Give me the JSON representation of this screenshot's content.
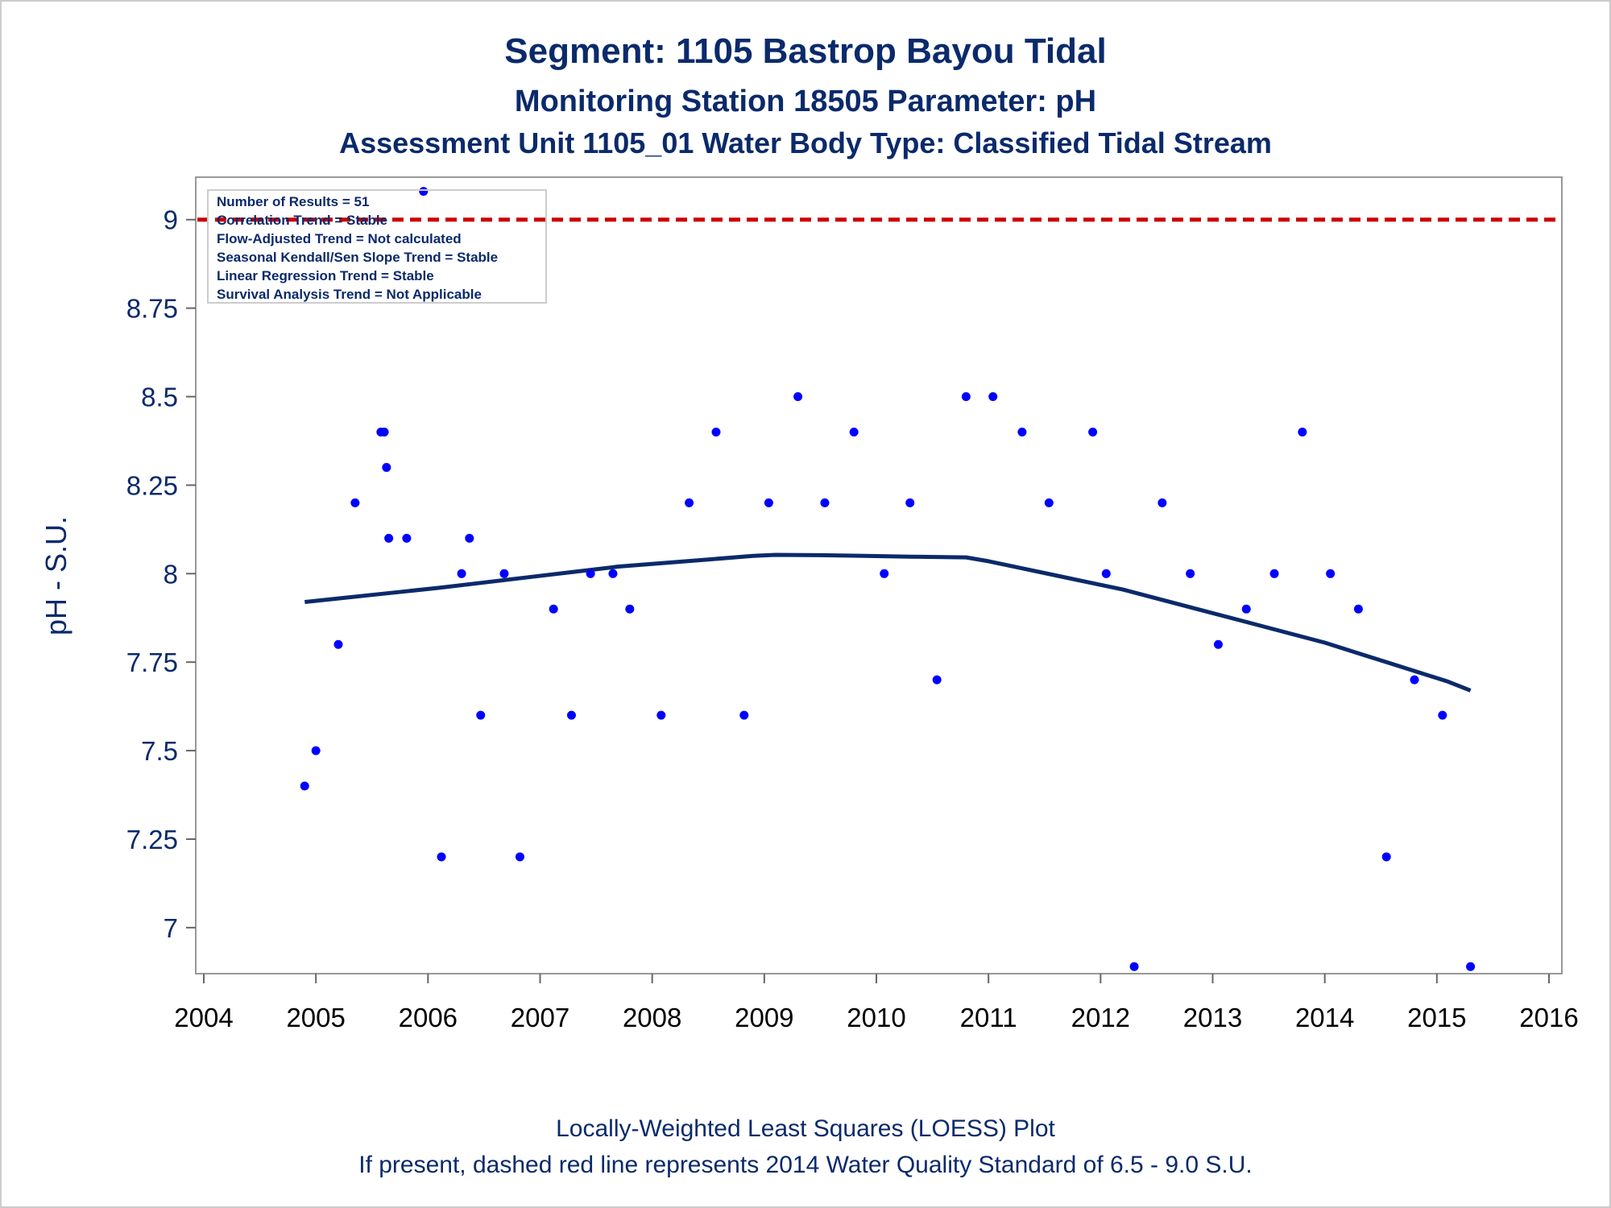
{
  "titles": {
    "line1": "Segment: 1105  Bastrop Bayou Tidal",
    "line2": "Monitoring Station 18505 Parameter: pH",
    "line3": "Assessment Unit 1105_01   Water Body Type: Classified Tidal Stream"
  },
  "footnotes": {
    "line1": "Locally-Weighted Least Squares (LOESS) Plot",
    "line2": "If present, dashed red line represents 2014 Water Quality Standard of 6.5 - 9.0 S.U."
  },
  "legend": {
    "lines": [
      "Number of Results = 51",
      "Correlation Trend = Stable",
      "Flow-Adjusted Trend = Not calculated",
      "Seasonal Kendall/Sen Slope Trend = Stable",
      "Linear Regression Trend = Stable",
      "Survival Analysis Trend = Not Applicable"
    ]
  },
  "colors": {
    "points": "#0000ff",
    "loess": "#0b2a6b",
    "standard_line": "#cc0000",
    "text": "#0b2a6b",
    "frame": "#999999"
  },
  "chart_data": {
    "type": "scatter",
    "title": "Segment: 1105  Bastrop Bayou Tidal",
    "xlabel": "",
    "ylabel": "pH - S.U.",
    "xlim": [
      2004,
      2016
    ],
    "ylim": [
      6.87,
      9.12
    ],
    "x_ticks": [
      2004,
      2005,
      2006,
      2007,
      2008,
      2009,
      2010,
      2011,
      2012,
      2013,
      2014,
      2015,
      2016
    ],
    "x_tick_labels": [
      "2004",
      "2005",
      "2006",
      "2007",
      "2008",
      "2009",
      "2010",
      "2011",
      "2012",
      "2013",
      "2014",
      "2015",
      "2016"
    ],
    "y_ticks": [
      7,
      7.25,
      7.5,
      7.75,
      8,
      8.25,
      8.5,
      8.75,
      9
    ],
    "y_tick_labels": [
      "7",
      "7.25",
      "7.5",
      "7.75",
      "8",
      "8.25",
      "8.5",
      "8.75",
      "9"
    ],
    "grid": false,
    "legend_position": "top-left",
    "reference_lines": [
      {
        "y": 9.0,
        "style": "dashed"
      }
    ],
    "points": [
      [
        2004.9,
        7.4
      ],
      [
        2005.0,
        7.5
      ],
      [
        2005.2,
        7.8
      ],
      [
        2005.35,
        8.2
      ],
      [
        2005.58,
        8.4
      ],
      [
        2005.61,
        8.4
      ],
      [
        2005.63,
        8.3
      ],
      [
        2005.65,
        8.1
      ],
      [
        2005.81,
        8.1
      ],
      [
        2005.96,
        9.08
      ],
      [
        2006.12,
        7.2
      ],
      [
        2006.3,
        8.0
      ],
      [
        2006.37,
        8.1
      ],
      [
        2006.47,
        7.6
      ],
      [
        2006.68,
        8.0
      ],
      [
        2006.82,
        7.2
      ],
      [
        2007.12,
        7.9
      ],
      [
        2007.28,
        7.6
      ],
      [
        2007.45,
        8.0
      ],
      [
        2007.65,
        8.0
      ],
      [
        2007.8,
        7.9
      ],
      [
        2008.08,
        7.6
      ],
      [
        2008.33,
        8.2
      ],
      [
        2008.57,
        8.4
      ],
      [
        2008.82,
        7.6
      ],
      [
        2009.04,
        8.2
      ],
      [
        2009.3,
        8.5
      ],
      [
        2009.54,
        8.2
      ],
      [
        2009.8,
        8.4
      ],
      [
        2010.07,
        8.0
      ],
      [
        2010.3,
        8.2
      ],
      [
        2010.54,
        7.7
      ],
      [
        2010.8,
        8.5
      ],
      [
        2011.04,
        8.5
      ],
      [
        2011.3,
        8.4
      ],
      [
        2011.54,
        8.2
      ],
      [
        2011.93,
        8.4
      ],
      [
        2012.05,
        8.0
      ],
      [
        2012.3,
        6.89
      ],
      [
        2012.55,
        8.2
      ],
      [
        2012.8,
        8.0
      ],
      [
        2013.05,
        7.8
      ],
      [
        2013.3,
        7.9
      ],
      [
        2013.55,
        8.0
      ],
      [
        2013.8,
        8.4
      ],
      [
        2014.05,
        8.0
      ],
      [
        2014.3,
        7.9
      ],
      [
        2014.55,
        7.2
      ],
      [
        2014.8,
        7.7
      ],
      [
        2015.05,
        7.6
      ],
      [
        2015.3,
        6.89
      ]
    ],
    "loess": [
      [
        2004.9,
        7.92
      ],
      [
        2005.2,
        7.93
      ],
      [
        2005.5,
        7.94
      ],
      [
        2005.8,
        7.95
      ],
      [
        2006.1,
        7.96
      ],
      [
        2006.5,
        7.975
      ],
      [
        2006.9,
        7.99
      ],
      [
        2007.3,
        8.005
      ],
      [
        2007.7,
        8.02
      ],
      [
        2008.1,
        8.03
      ],
      [
        2008.5,
        8.04
      ],
      [
        2008.9,
        8.05
      ],
      [
        2009.1,
        8.053
      ],
      [
        2009.5,
        8.052
      ],
      [
        2009.9,
        8.05
      ],
      [
        2010.3,
        8.048
      ],
      [
        2010.8,
        8.046
      ],
      [
        2011.0,
        8.035
      ],
      [
        2011.3,
        8.015
      ],
      [
        2011.6,
        7.995
      ],
      [
        2011.9,
        7.975
      ],
      [
        2012.2,
        7.955
      ],
      [
        2012.5,
        7.93
      ],
      [
        2012.8,
        7.905
      ],
      [
        2013.1,
        7.88
      ],
      [
        2013.4,
        7.855
      ],
      [
        2013.7,
        7.83
      ],
      [
        2014.0,
        7.805
      ],
      [
        2014.3,
        7.775
      ],
      [
        2014.6,
        7.745
      ],
      [
        2014.9,
        7.715
      ],
      [
        2015.1,
        7.695
      ],
      [
        2015.3,
        7.67
      ]
    ]
  }
}
